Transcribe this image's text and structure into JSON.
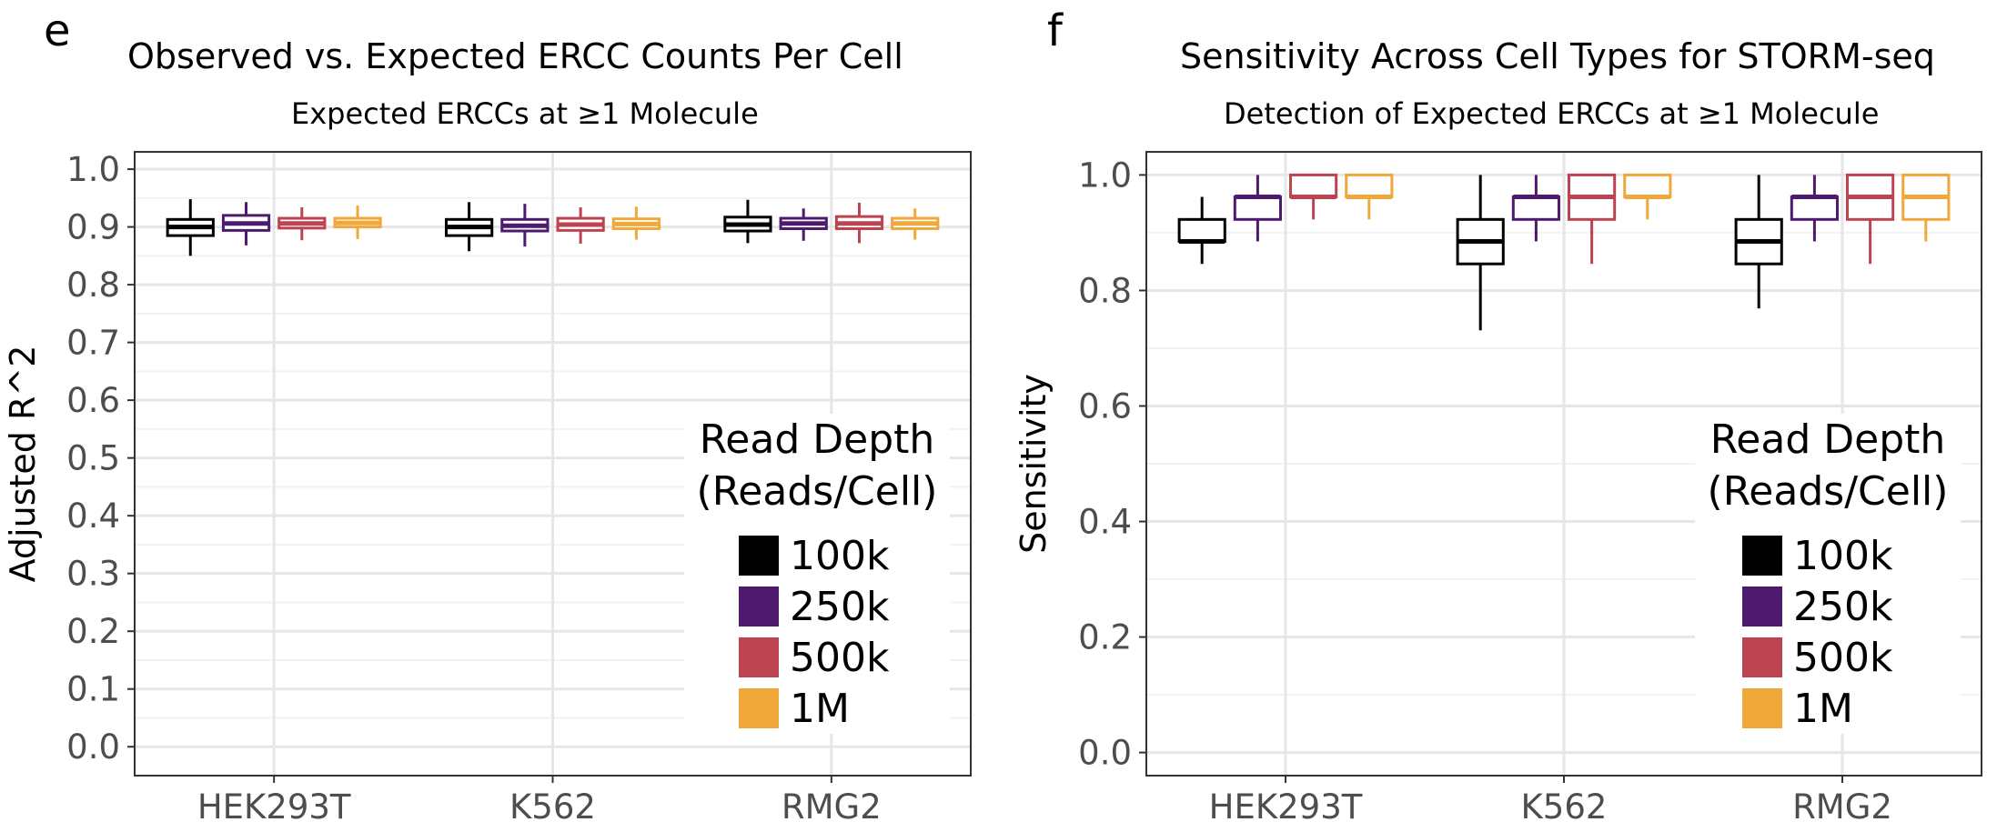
{
  "panels": [
    {
      "letter": "e",
      "title": "Observed vs. Expected ERCC Counts Per Cell",
      "subtitle": "Expected ERCCs at ≥1 Molecule",
      "legend": {
        "title_line1": "Read Depth",
        "title_line2": "(Reads/Cell)",
        "items": [
          "100k",
          "250k",
          "500k",
          "1M"
        ]
      }
    },
    {
      "letter": "f",
      "title": "Sensitivity Across Cell Types for STORM-seq",
      "subtitle": "Detection of Expected ERCCs at ≥1 Molecule",
      "legend": {
        "title_line1": "Read Depth",
        "title_line2": "(Reads/Cell)",
        "items": [
          "100k",
          "250k",
          "500k",
          "1M"
        ]
      }
    }
  ],
  "colors": {
    "100k": "#000000",
    "250k": "#4e1a6e",
    "500k": "#bd4350",
    "1M": "#f1a83a",
    "grid_major": "#e6e6e6",
    "grid_minor": "#f2f2f2"
  },
  "chart_data": [
    {
      "type": "box",
      "title": "Observed vs. Expected ERCC Counts Per Cell",
      "subtitle": "Expected ERCCs at ≥1 Molecule",
      "xlabel": "",
      "ylabel": "Adjusted R^2",
      "ylim": [
        -0.05,
        1.03
      ],
      "yticks": [
        0.0,
        0.1,
        0.2,
        0.3,
        0.4,
        0.5,
        0.6,
        0.7,
        0.8,
        0.9,
        1.0
      ],
      "ytick_labels": [
        "0.0",
        "0.1",
        "0.2",
        "0.3",
        "0.4",
        "0.5",
        "0.6",
        "0.7",
        "0.8",
        "0.9",
        "1.0"
      ],
      "categories": [
        "HEK293T",
        "K562",
        "RMG2"
      ],
      "legend_title": "Read Depth\n(Reads/Cell)",
      "legend_position": "bottom-right",
      "grid": true,
      "series": [
        {
          "name": "100k",
          "boxes": [
            {
              "min": 0.85,
              "q1": 0.885,
              "median": 0.9,
              "q3": 0.913,
              "max": 0.948
            },
            {
              "min": 0.858,
              "q1": 0.885,
              "median": 0.9,
              "q3": 0.913,
              "max": 0.943
            },
            {
              "min": 0.872,
              "q1": 0.893,
              "median": 0.904,
              "q3": 0.917,
              "max": 0.947
            }
          ]
        },
        {
          "name": "250k",
          "boxes": [
            {
              "min": 0.868,
              "q1": 0.894,
              "median": 0.906,
              "q3": 0.92,
              "max": 0.943
            },
            {
              "min": 0.866,
              "q1": 0.893,
              "median": 0.902,
              "q3": 0.913,
              "max": 0.94
            },
            {
              "min": 0.876,
              "q1": 0.897,
              "median": 0.906,
              "q3": 0.915,
              "max": 0.932
            }
          ]
        },
        {
          "name": "500k",
          "boxes": [
            {
              "min": 0.877,
              "q1": 0.898,
              "median": 0.906,
              "q3": 0.915,
              "max": 0.934
            },
            {
              "min": 0.871,
              "q1": 0.894,
              "median": 0.904,
              "q3": 0.915,
              "max": 0.934
            },
            {
              "min": 0.872,
              "q1": 0.897,
              "median": 0.906,
              "q3": 0.918,
              "max": 0.942
            }
          ]
        },
        {
          "name": "1M",
          "boxes": [
            {
              "min": 0.879,
              "q1": 0.9,
              "median": 0.907,
              "q3": 0.915,
              "max": 0.937
            },
            {
              "min": 0.878,
              "q1": 0.897,
              "median": 0.905,
              "q3": 0.914,
              "max": 0.935
            },
            {
              "min": 0.878,
              "q1": 0.897,
              "median": 0.906,
              "q3": 0.915,
              "max": 0.932
            }
          ]
        }
      ]
    },
    {
      "type": "box",
      "title": "Sensitivity Across Cell Types for STORM-seq",
      "subtitle": "Detection of Expected ERCCs at ≥1 Molecule",
      "xlabel": "",
      "ylabel": "Sensitivity",
      "ylim": [
        -0.04,
        1.04
      ],
      "yticks": [
        0.0,
        0.2,
        0.4,
        0.6,
        0.8,
        1.0
      ],
      "ytick_labels": [
        "0.0",
        "0.2",
        "0.4",
        "0.6",
        "0.8",
        "1.0"
      ],
      "categories": [
        "HEK293T",
        "K562",
        "RMG2"
      ],
      "legend_title": "Read Depth\n(Reads/Cell)",
      "legend_position": "bottom-right",
      "grid": true,
      "series": [
        {
          "name": "100k",
          "boxes": [
            {
              "min": 0.846,
              "q1": 0.885,
              "median": 0.885,
              "q3": 0.923,
              "max": 0.962
            },
            {
              "min": 0.731,
              "q1": 0.846,
              "median": 0.885,
              "q3": 0.923,
              "max": 1.0
            },
            {
              "min": 0.769,
              "q1": 0.846,
              "median": 0.885,
              "q3": 0.923,
              "max": 1.0
            }
          ]
        },
        {
          "name": "250k",
          "boxes": [
            {
              "min": 0.885,
              "q1": 0.923,
              "median": 0.962,
              "q3": 0.962,
              "max": 1.0
            },
            {
              "min": 0.885,
              "q1": 0.923,
              "median": 0.962,
              "q3": 0.962,
              "max": 1.0
            },
            {
              "min": 0.885,
              "q1": 0.923,
              "median": 0.962,
              "q3": 0.962,
              "max": 1.0
            }
          ]
        },
        {
          "name": "500k",
          "boxes": [
            {
              "min": 0.923,
              "q1": 0.962,
              "median": 0.962,
              "q3": 1.0,
              "max": 1.0
            },
            {
              "min": 0.846,
              "q1": 0.923,
              "median": 0.962,
              "q3": 1.0,
              "max": 1.0
            },
            {
              "min": 0.846,
              "q1": 0.923,
              "median": 0.962,
              "q3": 1.0,
              "max": 1.0
            }
          ]
        },
        {
          "name": "1M",
          "boxes": [
            {
              "min": 0.923,
              "q1": 0.962,
              "median": 0.962,
              "q3": 1.0,
              "max": 1.0
            },
            {
              "min": 0.923,
              "q1": 0.962,
              "median": 0.962,
              "q3": 1.0,
              "max": 1.0
            },
            {
              "min": 0.885,
              "q1": 0.923,
              "median": 0.962,
              "q3": 1.0,
              "max": 1.0
            }
          ]
        }
      ]
    }
  ]
}
